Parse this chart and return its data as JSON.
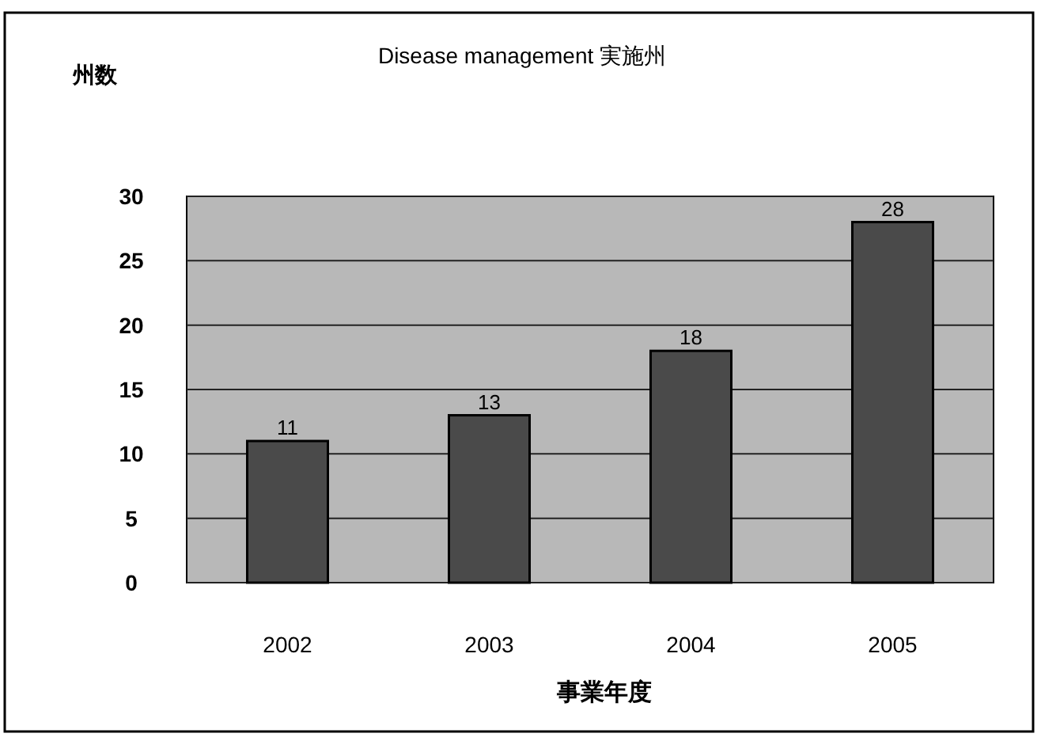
{
  "chart_data": {
    "type": "bar",
    "title": "Disease management 実施州",
    "ylabel": "州数",
    "xlabel": "事業年度",
    "categories": [
      "2002",
      "2003",
      "2004",
      "2005"
    ],
    "values": [
      11,
      13,
      18,
      28
    ],
    "color": "#4a4a4a",
    "ylim": [
      0,
      30
    ],
    "yticks": [
      0,
      5,
      10,
      15,
      20,
      25,
      30
    ],
    "grid": "y",
    "data_labels": true
  }
}
